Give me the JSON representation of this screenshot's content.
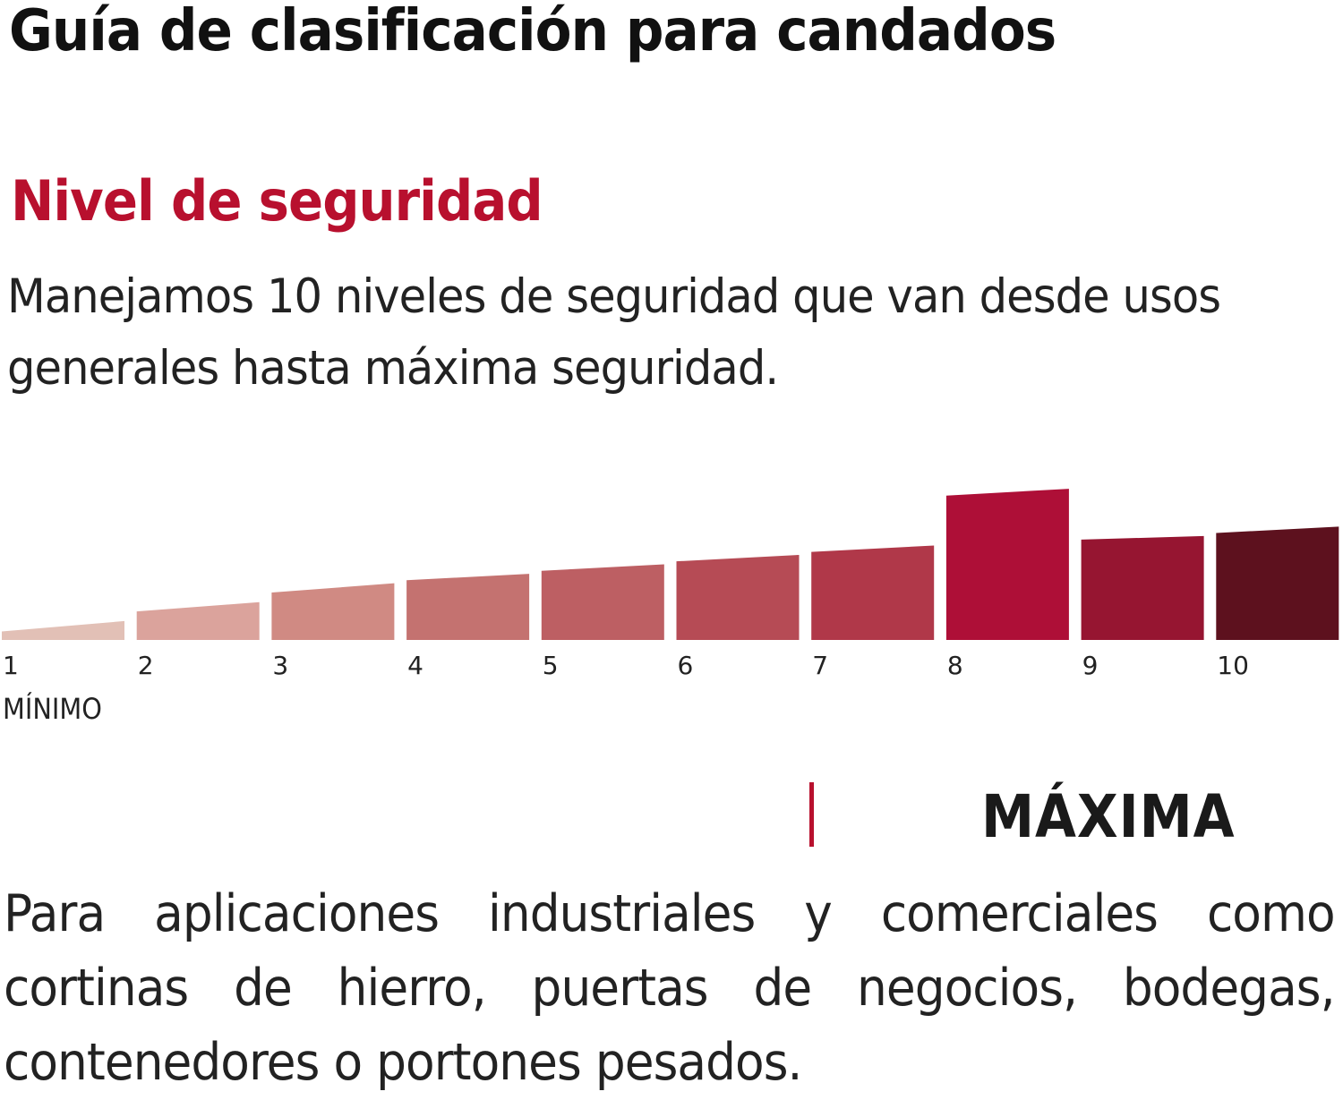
{
  "title": "Guía de clasificación para candados",
  "subtitle": "Nivel de seguridad",
  "intro": "Manejamos 10 niveles de seguridad que van desde usos generales hasta máxima seguridad.",
  "min_label": "MÍNIMO",
  "selected_level_name": "MÁXIMA",
  "description": "Para aplicaciones industriales y comerciales como cortinas de hierro, puertas de negocios, bodegas, contenedores o portones pesados.",
  "colors": {
    "accent": "#b8102e",
    "highlight_bar": "#ae0f37"
  },
  "chart_data": {
    "type": "bar",
    "categories": [
      "1",
      "2",
      "3",
      "4",
      "5",
      "6",
      "7",
      "8",
      "9",
      "10"
    ],
    "values": [
      1,
      2,
      3,
      3.5,
      4,
      4.5,
      5,
      8,
      5.5,
      6
    ],
    "highlighted": "8",
    "colors": [
      "#e2c0b6",
      "#dba39c",
      "#d08a83",
      "#c47270",
      "#bd5f63",
      "#b64b55",
      "#b03849",
      "#ae0f37",
      "#961531",
      "#5d111e"
    ],
    "ylim": [
      0,
      9
    ],
    "xlabel": "",
    "ylabel": ""
  }
}
